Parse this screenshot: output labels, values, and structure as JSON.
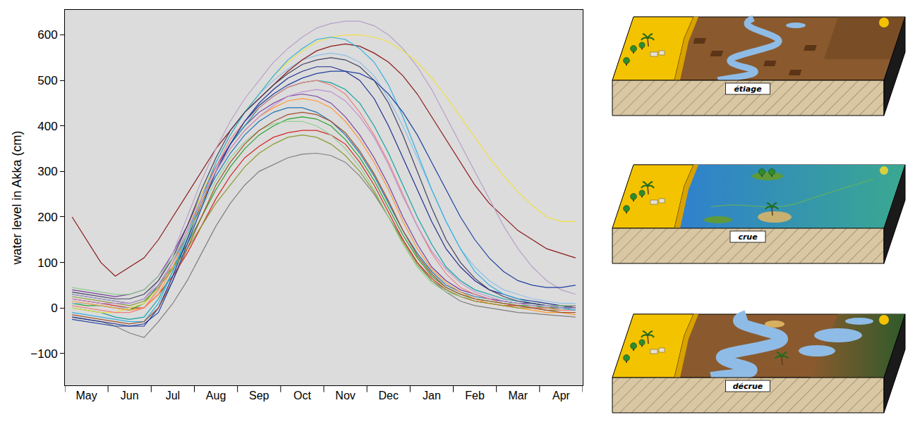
{
  "chart_data": {
    "type": "line",
    "ylabel": "water level in Akka (cm)",
    "categories": [
      null,
      "May",
      null,
      null,
      "Jun",
      null,
      null,
      "Jul",
      null,
      null,
      "Aug",
      null,
      null,
      "Sep",
      null,
      null,
      "Oct",
      null,
      null,
      "Nov",
      null,
      null,
      "Dec",
      null,
      null,
      "Jan",
      null,
      null,
      "Feb",
      null,
      null,
      "Mar",
      null,
      null,
      "Apr",
      null
    ],
    "ylim": [
      -170,
      655
    ],
    "yticks": [
      -100,
      0,
      100,
      200,
      300,
      400,
      500,
      600
    ],
    "grid": false,
    "series": [
      {
        "color": "#7f7f7f",
        "values": [
          -20,
          -25,
          -30,
          -40,
          -55,
          -65,
          -30,
          10,
          60,
          120,
          180,
          230,
          270,
          300,
          315,
          330,
          338,
          340,
          335,
          320,
          290,
          250,
          200,
          150,
          100,
          60,
          35,
          15,
          5,
          0,
          -5,
          -10,
          -12,
          -15,
          -18,
          -20
        ]
      },
      {
        "color": "#d62728",
        "values": [
          20,
          15,
          10,
          5,
          0,
          0,
          30,
          70,
          120,
          180,
          240,
          290,
          330,
          355,
          375,
          385,
          390,
          390,
          380,
          360,
          320,
          270,
          210,
          150,
          100,
          65,
          40,
          25,
          15,
          10,
          5,
          5,
          0,
          0,
          0,
          5
        ]
      },
      {
        "color": "#2ca02c",
        "values": [
          10,
          5,
          5,
          0,
          -5,
          10,
          50,
          90,
          140,
          200,
          260,
          310,
          350,
          380,
          400,
          415,
          420,
          415,
          400,
          370,
          330,
          280,
          220,
          160,
          110,
          70,
          45,
          30,
          20,
          15,
          10,
          5,
          5,
          0,
          0,
          0
        ]
      },
      {
        "color": "#1f77b4",
        "values": [
          30,
          25,
          20,
          15,
          10,
          20,
          50,
          100,
          160,
          230,
          290,
          340,
          380,
          410,
          430,
          440,
          440,
          430,
          410,
          380,
          340,
          290,
          230,
          170,
          120,
          80,
          50,
          35,
          25,
          20,
          15,
          10,
          5,
          5,
          0,
          0
        ]
      },
      {
        "color": "#7b3fa0",
        "values": [
          40,
          35,
          30,
          25,
          30,
          40,
          70,
          120,
          180,
          250,
          310,
          360,
          400,
          430,
          450,
          465,
          470,
          465,
          450,
          420,
          380,
          330,
          270,
          200,
          140,
          90,
          60,
          40,
          30,
          20,
          15,
          10,
          10,
          5,
          5,
          5
        ]
      },
      {
        "color": "#17a2a2",
        "values": [
          0,
          -5,
          -10,
          -20,
          -25,
          -20,
          20,
          80,
          150,
          230,
          300,
          360,
          400,
          440,
          465,
          485,
          495,
          500,
          495,
          480,
          450,
          400,
          340,
          270,
          200,
          140,
          90,
          60,
          40,
          30,
          20,
          15,
          10,
          5,
          0,
          -5
        ]
      },
      {
        "color": "#1f2f8f",
        "values": [
          -20,
          -25,
          -30,
          -35,
          -40,
          -40,
          0,
          70,
          150,
          230,
          300,
          360,
          410,
          450,
          480,
          505,
          520,
          530,
          530,
          520,
          500,
          460,
          400,
          330,
          260,
          190,
          130,
          90,
          60,
          40,
          30,
          20,
          15,
          10,
          5,
          0
        ]
      },
      {
        "color": "#8fc1e8",
        "values": [
          10,
          10,
          5,
          0,
          0,
          10,
          40,
          100,
          170,
          250,
          320,
          380,
          430,
          470,
          500,
          525,
          545,
          555,
          560,
          555,
          540,
          510,
          460,
          400,
          330,
          260,
          190,
          130,
          90,
          60,
          40,
          30,
          20,
          15,
          10,
          10
        ]
      },
      {
        "color": "#8b1a1a",
        "values": [
          200,
          150,
          100,
          70,
          90,
          110,
          150,
          200,
          250,
          300,
          350,
          390,
          430,
          460,
          490,
          520,
          545,
          565,
          575,
          580,
          575,
          560,
          540,
          510,
          470,
          420,
          370,
          320,
          270,
          230,
          200,
          170,
          150,
          130,
          120,
          110
        ]
      },
      {
        "color": "#b8a0c8",
        "values": [
          30,
          25,
          20,
          15,
          10,
          20,
          60,
          120,
          200,
          280,
          350,
          410,
          460,
          500,
          540,
          570,
          595,
          615,
          625,
          630,
          630,
          620,
          600,
          570,
          530,
          480,
          420,
          360,
          300,
          240,
          180,
          130,
          90,
          60,
          40,
          30
        ]
      },
      {
        "color": "#f0e040",
        "values": [
          0,
          -5,
          -10,
          -10,
          0,
          10,
          40,
          100,
          170,
          250,
          320,
          380,
          430,
          470,
          510,
          540,
          565,
          585,
          595,
          600,
          600,
          595,
          585,
          565,
          540,
          505,
          465,
          420,
          375,
          330,
          290,
          255,
          225,
          200,
          190,
          190
        ]
      },
      {
        "color": "#ff9933",
        "values": [
          15,
          10,
          5,
          0,
          -5,
          0,
          30,
          90,
          160,
          230,
          300,
          350,
          390,
          420,
          440,
          455,
          460,
          455,
          440,
          410,
          370,
          320,
          260,
          190,
          130,
          85,
          55,
          35,
          20,
          10,
          5,
          0,
          -5,
          -10,
          -10,
          -15
        ]
      },
      {
        "color": "#8a9a30",
        "values": [
          25,
          20,
          15,
          10,
          5,
          15,
          45,
          85,
          130,
          180,
          230,
          270,
          310,
          340,
          360,
          375,
          380,
          375,
          360,
          335,
          300,
          255,
          200,
          145,
          95,
          60,
          40,
          25,
          15,
          10,
          5,
          0,
          0,
          -5,
          -5,
          -5
        ]
      },
      {
        "color": "#f08080",
        "values": [
          5,
          0,
          -5,
          -10,
          -10,
          0,
          40,
          100,
          170,
          240,
          310,
          370,
          410,
          440,
          465,
          485,
          495,
          500,
          490,
          470,
          430,
          380,
          320,
          250,
          180,
          120,
          75,
          45,
          30,
          20,
          10,
          5,
          0,
          0,
          -5,
          -5
        ]
      },
      {
        "color": "#30b0e0",
        "values": [
          -10,
          -15,
          -20,
          -25,
          -30,
          -30,
          10,
          80,
          160,
          240,
          320,
          380,
          430,
          470,
          510,
          545,
          570,
          590,
          595,
          590,
          570,
          540,
          490,
          420,
          340,
          260,
          190,
          130,
          80,
          50,
          30,
          20,
          10,
          5,
          0,
          -5
        ]
      },
      {
        "color": "#404060",
        "values": [
          35,
          30,
          25,
          20,
          20,
          30,
          60,
          110,
          180,
          260,
          330,
          390,
          430,
          460,
          490,
          515,
          535,
          545,
          550,
          545,
          530,
          500,
          450,
          380,
          300,
          220,
          150,
          100,
          65,
          40,
          25,
          15,
          10,
          5,
          5,
          0
        ]
      },
      {
        "color": "#90d090",
        "values": [
          45,
          40,
          35,
          30,
          30,
          40,
          70,
          110,
          160,
          220,
          280,
          330,
          365,
          390,
          405,
          410,
          410,
          400,
          380,
          350,
          310,
          260,
          200,
          140,
          90,
          55,
          35,
          25,
          20,
          15,
          10,
          10,
          5,
          5,
          5,
          5
        ]
      },
      {
        "color": "#a0522d",
        "values": [
          -15,
          -20,
          -25,
          -30,
          -35,
          -30,
          0,
          60,
          130,
          200,
          270,
          320,
          360,
          390,
          410,
          425,
          430,
          425,
          410,
          385,
          345,
          295,
          235,
          170,
          115,
          75,
          45,
          30,
          20,
          15,
          10,
          5,
          0,
          -5,
          -10,
          -10
        ]
      },
      {
        "color": "#2040a0",
        "values": [
          -25,
          -30,
          -35,
          -40,
          -40,
          -35,
          -10,
          60,
          140,
          220,
          300,
          360,
          410,
          445,
          470,
          490,
          505,
          515,
          520,
          520,
          515,
          500,
          470,
          430,
          380,
          320,
          260,
          200,
          150,
          110,
          80,
          60,
          50,
          45,
          45,
          50
        ]
      },
      {
        "color": "#c090d0",
        "values": [
          20,
          15,
          10,
          10,
          10,
          20,
          50,
          100,
          170,
          240,
          300,
          350,
          390,
          420,
          445,
          465,
          475,
          480,
          475,
          455,
          420,
          375,
          315,
          245,
          180,
          125,
          85,
          55,
          35,
          25,
          15,
          10,
          5,
          5,
          0,
          0
        ]
      }
    ]
  },
  "diagrams": [
    {
      "label": "étiage"
    },
    {
      "label": "crue"
    },
    {
      "label": "décrue"
    }
  ]
}
